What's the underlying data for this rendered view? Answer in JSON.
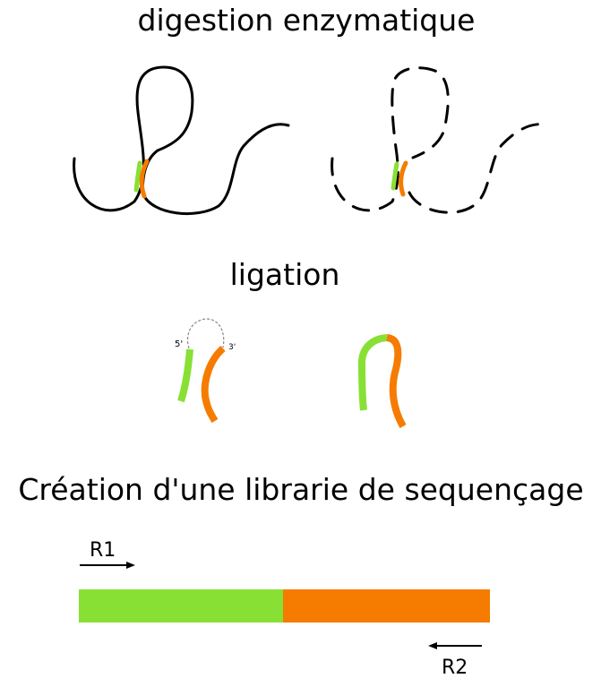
{
  "sections": {
    "digestion": {
      "title": "digestion enzymatique"
    },
    "ligation": {
      "title": "ligation",
      "label_5prime": "5'",
      "label_3prime": "3'"
    },
    "library": {
      "title": "Création d'une librarie de sequençage",
      "read1": "R1",
      "read2": "R2"
    }
  },
  "colors": {
    "fragment_a": "#88e035",
    "fragment_b": "#f57c00",
    "dna_strand": "#000000",
    "connector": "#888888"
  }
}
